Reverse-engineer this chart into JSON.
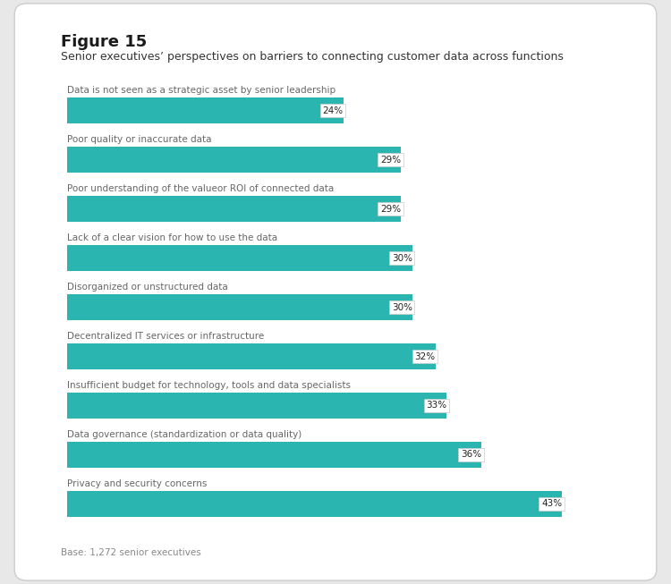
{
  "title": "Figure 15",
  "subtitle": "Senior executives’ perspectives on barriers to connecting customer data across functions",
  "footnote": "Base: 1,272 senior executives",
  "categories": [
    "Data is not seen as a strategic asset by senior leadership",
    "Poor quality or inaccurate data",
    "Poor understanding of the valueor ROI of connected data",
    "Lack of a clear vision for how to use the data",
    "Disorganized or unstructured data",
    "Decentralized IT services or infrastructure",
    "Insufficient budget for technology, tools and data specialists",
    "Data governance (standardization or data quality)",
    "Privacy and security concerns"
  ],
  "values": [
    24,
    29,
    29,
    30,
    30,
    32,
    33,
    36,
    43
  ],
  "bar_color": "#2ab5b0",
  "label_bg_color": "#ffffff",
  "label_text_color": "#222222",
  "background_color": "#ffffff",
  "figure_bg_color": "#e8e8e8",
  "title_fontsize": 13,
  "subtitle_fontsize": 9,
  "category_fontsize": 7.5,
  "value_fontsize": 7.5,
  "footnote_fontsize": 7.5,
  "bar_height": 0.52,
  "xlim": [
    0,
    48
  ]
}
